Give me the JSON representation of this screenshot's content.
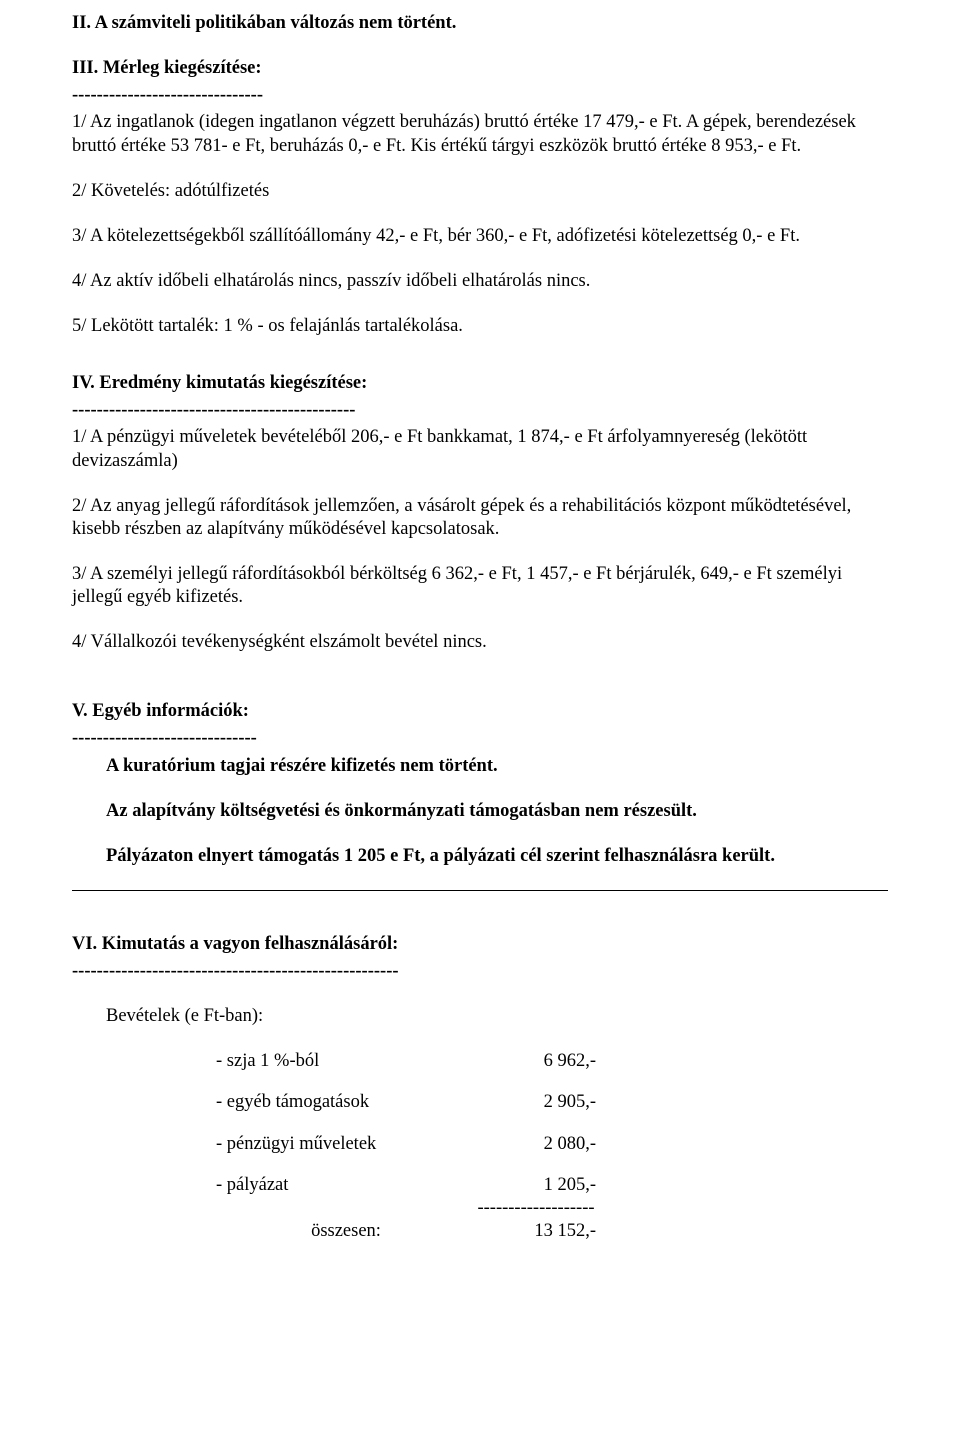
{
  "section2": {
    "heading": "II. A számviteli politikában változás nem történt."
  },
  "section3": {
    "heading": "III. Mérleg kiegészítése:",
    "dashes": "-------------------------------",
    "p1": "1/  Az ingatlanok (idegen ingatlanon végzett beruházás) bruttó értéke 17 479,- e Ft.    A gépek, berendezések bruttó értéke 53 781- e Ft, beruházás 0,- e Ft.    Kis értékű tárgyi eszközök bruttó értéke 8 953,- e Ft.",
    "p2": "2/  Követelés: adótúlfizetés",
    "p3": "3/  A kötelezettségekből szállítóállomány 42,- e Ft, bér 360,- e Ft, adófizetési kötelezettség 0,- e Ft.",
    "p4": "4/ Az aktív időbeli elhatárolás nincs, passzív időbeli elhatárolás nincs.",
    "p5": "5/ Lekötött tartalék: 1 % - os felajánlás tartalékolása."
  },
  "section4": {
    "heading": "IV. Eredmény kimutatás kiegészítése:",
    "dashes": "----------------------------------------------",
    "p1": "1/  A pénzügyi műveletek bevételéből 206,- e Ft bankkamat, 1 874,- e Ft árfolyamnyereség (lekötött devizaszámla)",
    "p2": "2/  Az anyag jellegű ráfordítások jellemzően, a vásárolt gépek és a rehabilitációs központ működtetésével, kisebb részben az alapítvány működésével kapcsolatosak.",
    "p3": "3/  A személyi jellegű ráfordításokból bérköltség 6 362,- e Ft, 1 457,- e Ft bérjárulék, 649,- e Ft személyi jellegű egyéb kifizetés.",
    "p4": "4/ Vállalkozói tevékenységként elszámolt bevétel nincs."
  },
  "section5": {
    "heading": "V. Egyéb információk:",
    "dashes": "------------------------------",
    "l1": "A kuratórium tagjai részére kifizetés nem történt.",
    "l2": "Az alapítvány költségvetési és önkormányzati támogatásban nem részesült.",
    "l3": "Pályázaton elnyert támogatás 1 205 e Ft, a pályázati cél szerint felhasználásra került."
  },
  "section6": {
    "heading": "VI. Kimutatás a vagyon felhasználásáról:",
    "dashes": "-----------------------------------------------------",
    "bevLabel": "Bevételek (e Ft-ban):",
    "rows": [
      {
        "label": "- szja 1 %-ból",
        "value": "6 962,-"
      },
      {
        "label": "- egyéb támogatások",
        "value": "2 905,-"
      },
      {
        "label": "- pénzügyi műveletek",
        "value": "2 080,-"
      },
      {
        "label": "- pályázat",
        "value": "1 205,-"
      }
    ],
    "subrule": "-------------------",
    "sumLabel": "összesen:",
    "sumValue": "13 152,-"
  }
}
